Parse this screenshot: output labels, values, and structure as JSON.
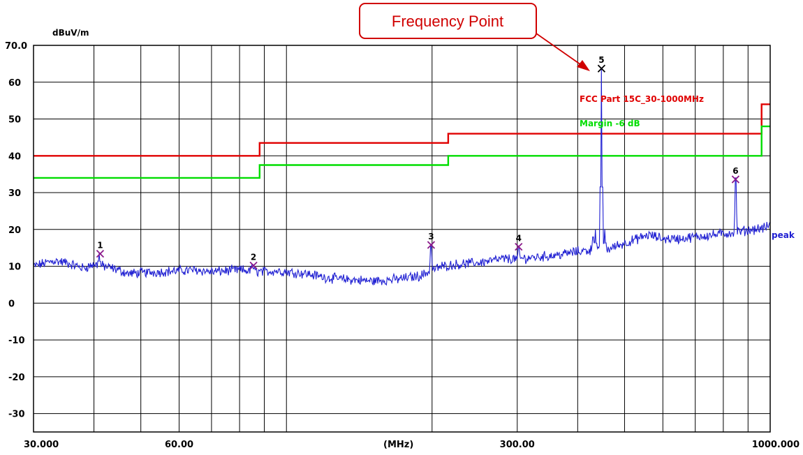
{
  "chart_data": {
    "type": "line",
    "title": "",
    "xlabel": "(MHz)",
    "ylabel": "dBuV/m",
    "x_scale": "log",
    "xlim": [
      30,
      1000
    ],
    "ylim": [
      -35,
      70
    ],
    "y_ticks": [
      {
        "value": 70,
        "label": "70.0"
      },
      {
        "value": 60,
        "label": "60"
      },
      {
        "value": 50,
        "label": "50"
      },
      {
        "value": 40,
        "label": "40"
      },
      {
        "value": 30,
        "label": "30"
      },
      {
        "value": 20,
        "label": "20"
      },
      {
        "value": 10,
        "label": "10"
      },
      {
        "value": 0,
        "label": "0"
      },
      {
        "value": -10,
        "label": "-10"
      },
      {
        "value": -20,
        "label": "-20"
      },
      {
        "value": -30,
        "label": "-30"
      }
    ],
    "x_ticks": [
      {
        "value": 30,
        "label": "30.000"
      },
      {
        "value": 60,
        "label": "60.00"
      },
      {
        "value": 300,
        "label": "300.00"
      },
      {
        "value": 1000,
        "label": "1000.000"
      }
    ],
    "x_gridlines": [
      40,
      50,
      60,
      70,
      80,
      90,
      100,
      200,
      300,
      400,
      500,
      600,
      700,
      800,
      900
    ],
    "grid": true,
    "series": [
      {
        "name": "FCC Part 15C_30-1000MHz",
        "color": "#e00000",
        "step": [
          [
            30,
            40
          ],
          [
            88,
            40
          ],
          [
            88,
            43.5
          ],
          [
            216,
            43.5
          ],
          [
            216,
            46
          ],
          [
            960,
            46
          ],
          [
            960,
            54
          ],
          [
            1000,
            54
          ]
        ]
      },
      {
        "name": "Margin -6 dB",
        "color": "#00dd00",
        "step": [
          [
            30,
            34
          ],
          [
            88,
            34
          ],
          [
            88,
            37.5
          ],
          [
            216,
            37.5
          ],
          [
            216,
            40
          ],
          [
            960,
            40
          ],
          [
            960,
            48
          ],
          [
            1000,
            48
          ]
        ]
      },
      {
        "name": "peak",
        "color": "#1e1ed2",
        "profile": [
          [
            30,
            10
          ],
          [
            33,
            11.5
          ],
          [
            35,
            11
          ],
          [
            38,
            9.5
          ],
          [
            40,
            10.5
          ],
          [
            42,
            10
          ],
          [
            45,
            9
          ],
          [
            47,
            8
          ],
          [
            50,
            8.2
          ],
          [
            55,
            8.5
          ],
          [
            60,
            8.8
          ],
          [
            65,
            9
          ],
          [
            70,
            8.5
          ],
          [
            75,
            8.8
          ],
          [
            80,
            9
          ],
          [
            85,
            8.7
          ],
          [
            90,
            8.5
          ],
          [
            95,
            8.8
          ],
          [
            100,
            8.5
          ],
          [
            110,
            8
          ],
          [
            120,
            7
          ],
          [
            130,
            6.5
          ],
          [
            150,
            6
          ],
          [
            170,
            6.5
          ],
          [
            190,
            7.5
          ],
          [
            200,
            9
          ],
          [
            210,
            10
          ],
          [
            225,
            10.5
          ],
          [
            250,
            11
          ],
          [
            280,
            12
          ],
          [
            300,
            12
          ],
          [
            330,
            12.5
          ],
          [
            360,
            13
          ],
          [
            400,
            14
          ],
          [
            430,
            14.5
          ],
          [
            450,
            14
          ],
          [
            480,
            15.5
          ],
          [
            520,
            17
          ],
          [
            560,
            18.5
          ],
          [
            600,
            17.5
          ],
          [
            650,
            17.5
          ],
          [
            700,
            18
          ],
          [
            760,
            18.5
          ],
          [
            820,
            19
          ],
          [
            870,
            19.5
          ],
          [
            920,
            20
          ],
          [
            980,
            20.5
          ],
          [
            1000,
            21.5
          ]
        ],
        "spikes": [
          [
            41,
            13.5
          ],
          [
            85,
            10.5
          ],
          [
            199,
            16
          ],
          [
            302,
            15.5
          ],
          [
            430,
            18
          ],
          [
            435,
            20
          ],
          [
            448,
            64
          ],
          [
            455,
            20
          ],
          [
            848,
            34
          ]
        ]
      }
    ],
    "markers": [
      {
        "label": "1",
        "x": 41.2,
        "y": 13.4,
        "color": "#8b1a8b"
      },
      {
        "label": "2",
        "x": 85.5,
        "y": 10.2,
        "color": "#8b1a8b"
      },
      {
        "label": "3",
        "x": 199.1,
        "y": 15.8,
        "color": "#8b1a8b"
      },
      {
        "label": "4",
        "x": 302.0,
        "y": 15.3,
        "color": "#8b1a8b"
      },
      {
        "label": "5",
        "x": 448.0,
        "y": 63.7,
        "color": "#000000"
      },
      {
        "label": "6",
        "x": 848.0,
        "y": 33.6,
        "color": "#8b1a8b"
      }
    ],
    "annotations": {
      "callout": "Frequency Point",
      "limit_label": "FCC Part 15C_30-1000MHz",
      "margin_label": "Margin -6 dB",
      "trace_label": "peak"
    }
  }
}
